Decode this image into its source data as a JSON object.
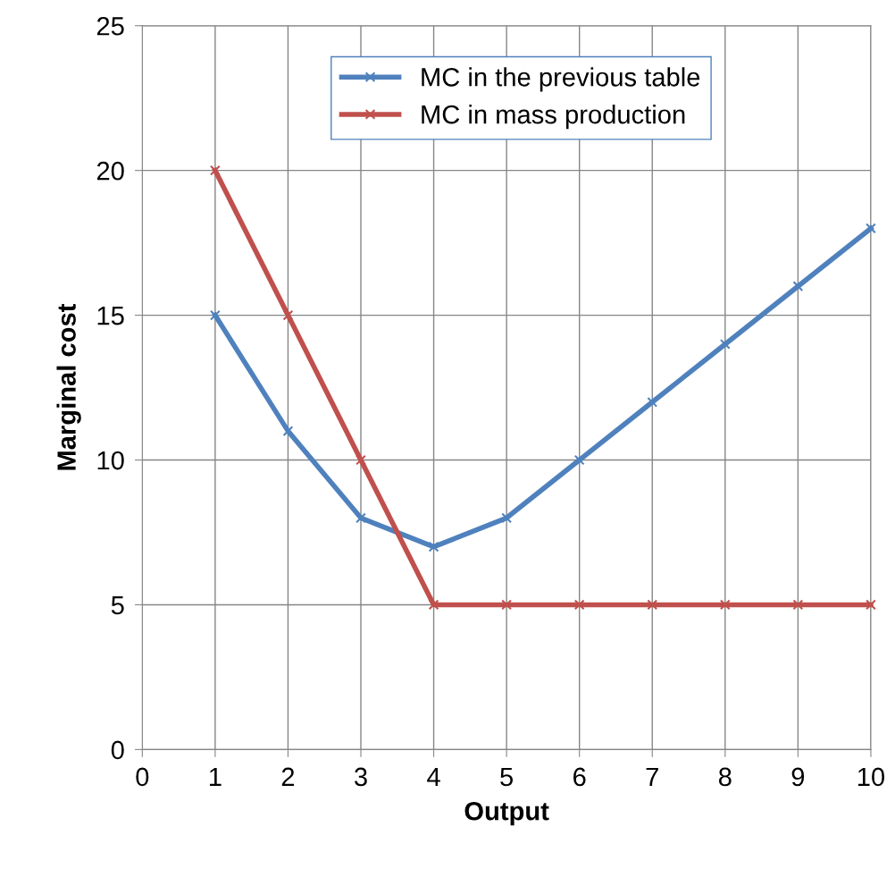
{
  "chart_data": {
    "type": "line",
    "xlabel": "Output",
    "ylabel": "Marginal cost",
    "x": [
      1,
      2,
      3,
      4,
      5,
      6,
      7,
      8,
      9,
      10
    ],
    "series": [
      {
        "name": "MC in the previous table",
        "color": "#4f81bd",
        "values": [
          15,
          11,
          8,
          7,
          8,
          10,
          12,
          14,
          16,
          18
        ]
      },
      {
        "name": "MC in mass production",
        "color": "#c0504d",
        "values": [
          20,
          15,
          10,
          5,
          5,
          5,
          5,
          5,
          5,
          5
        ]
      }
    ],
    "xlim": [
      0,
      10
    ],
    "xticks": [
      0,
      1,
      2,
      3,
      4,
      5,
      6,
      7,
      8,
      9,
      10
    ],
    "ylim": [
      0,
      25
    ],
    "yticks": [
      0,
      5,
      10,
      15,
      20,
      25
    ],
    "grid": true,
    "legend": "top",
    "marker": "cross",
    "line_style": "solid"
  }
}
